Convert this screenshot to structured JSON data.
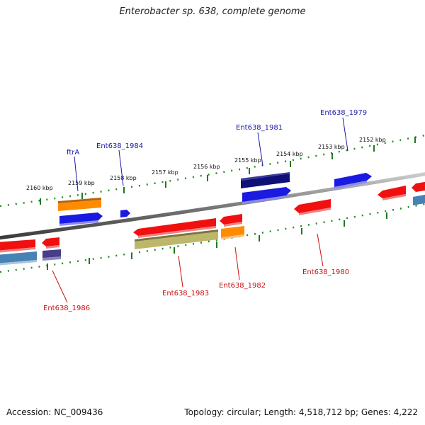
{
  "header": {
    "title": "Enterobacter sp. 638, complete genome"
  },
  "footer": {
    "accession": "Accession: NC_009436",
    "summary": "Topology: circular; Length: 4,518,712 bp; Genes: 4,222"
  },
  "scale_labels": [
    "2160 kbp",
    "2159 kbp",
    "2158 kbp",
    "2157 kbp",
    "2156 kbp",
    "2155 kbp",
    "2154 kbp",
    "2153 kbp",
    "2152 kbp"
  ],
  "gene_labels": {
    "ftrA": "ftrA",
    "ent1984": "Ent638_1984",
    "ent1981": "Ent638_1981",
    "ent1979": "Ent638_1979",
    "ent1986": "Ent638_1986",
    "ent1983": "Ent638_1983",
    "ent1982": "Ent638_1982",
    "ent1980": "Ent638_1980"
  },
  "colors": {
    "forward_label": "#1a1aa8",
    "reverse_label": "#cc1010",
    "tick": "#1f7a1f",
    "backbone": "#808080",
    "gene_blue": "#1a1ae0",
    "gene_navy": "#10107a",
    "gene_orange": "#ff8c00",
    "gene_red": "#f01010",
    "gene_olive": "#bdb76b",
    "gene_steel": "#4682b4",
    "gene_slate": "#483d8b"
  }
}
